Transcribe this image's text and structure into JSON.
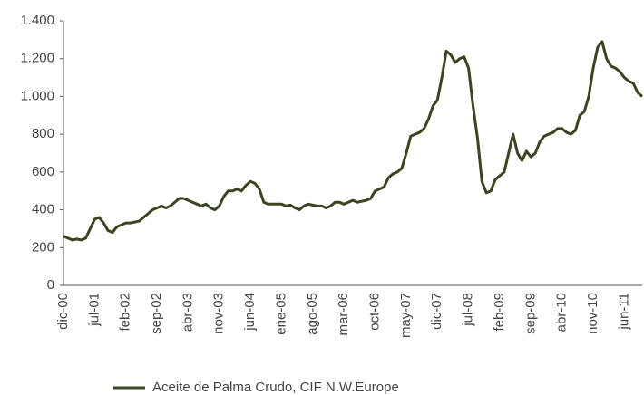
{
  "chart_data": {
    "type": "line",
    "categories": [
      "dic-00",
      null,
      null,
      null,
      null,
      null,
      null,
      "jul-01",
      null,
      null,
      null,
      null,
      null,
      null,
      "feb-02",
      null,
      null,
      null,
      null,
      null,
      null,
      "sep-02",
      null,
      null,
      null,
      null,
      null,
      null,
      "abr-03",
      null,
      null,
      null,
      null,
      null,
      null,
      "nov-03",
      null,
      null,
      null,
      null,
      null,
      null,
      "jun-04",
      null,
      null,
      null,
      null,
      null,
      null,
      "ene-05",
      null,
      null,
      null,
      null,
      null,
      null,
      "ago-05",
      null,
      null,
      null,
      null,
      null,
      null,
      "mar-06",
      null,
      null,
      null,
      null,
      null,
      null,
      "oct-06",
      null,
      null,
      null,
      null,
      null,
      null,
      "may-07",
      null,
      null,
      null,
      null,
      null,
      null,
      "dic-07",
      null,
      null,
      null,
      null,
      null,
      null,
      "jul-08",
      null,
      null,
      null,
      null,
      null,
      null,
      "feb-09",
      null,
      null,
      null,
      null,
      null,
      null,
      "sep-09",
      null,
      null,
      null,
      null,
      null,
      null,
      "abr-10",
      null,
      null,
      null,
      null,
      null,
      null,
      "nov-10",
      null,
      null,
      null,
      null,
      null,
      null,
      "jun-11",
      null,
      null,
      null,
      null
    ],
    "series": [
      {
        "name": "Aceite de Palma Crudo, CIF N.W.Europe",
        "color": "#3b4520",
        "values": [
          260,
          250,
          240,
          245,
          240,
          250,
          300,
          350,
          360,
          330,
          290,
          280,
          310,
          320,
          330,
          330,
          335,
          340,
          360,
          380,
          400,
          410,
          420,
          410,
          420,
          440,
          460,
          460,
          450,
          440,
          430,
          420,
          430,
          410,
          400,
          420,
          470,
          500,
          500,
          510,
          500,
          530,
          550,
          540,
          510,
          440,
          430,
          430,
          430,
          430,
          420,
          425,
          410,
          400,
          420,
          430,
          425,
          420,
          420,
          410,
          420,
          440,
          440,
          430,
          440,
          450,
          440,
          445,
          450,
          460,
          500,
          510,
          520,
          570,
          590,
          600,
          620,
          700,
          790,
          800,
          810,
          830,
          880,
          950,
          980,
          1100,
          1240,
          1220,
          1180,
          1200,
          1210,
          1150,
          950,
          780,
          550,
          490,
          500,
          560,
          580,
          600,
          700,
          800,
          700,
          660,
          710,
          680,
          700,
          760,
          790,
          800,
          810,
          830,
          830,
          810,
          800,
          820,
          900,
          920,
          1000,
          1150,
          1260,
          1290,
          1200,
          1160,
          1150,
          1130,
          1100,
          1080,
          1070,
          1020,
          1000
        ]
      }
    ],
    "ylim": [
      0,
      1400
    ],
    "yticks": [
      0,
      200,
      400,
      600,
      800,
      {
        "value": 1000,
        "label": "1.000"
      },
      {
        "value": 1200,
        "label": "1.200"
      },
      {
        "value": 1400,
        "label": "1.400"
      }
    ],
    "grid": false,
    "legend": "bottom"
  }
}
